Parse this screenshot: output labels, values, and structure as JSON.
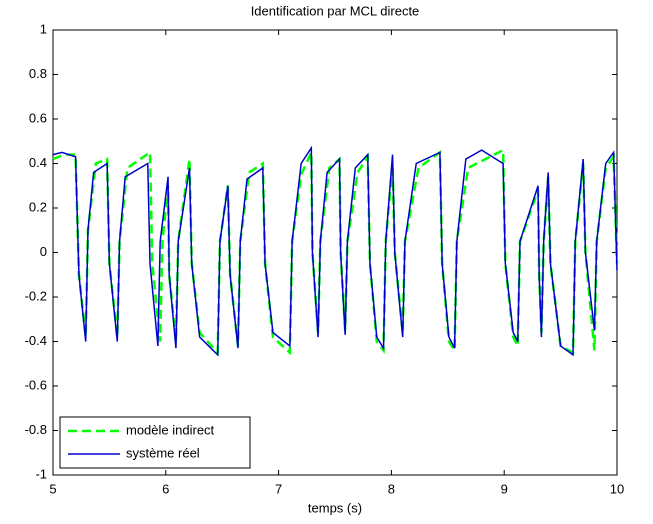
{
  "chart_data": {
    "type": "line",
    "title": "Identification par MCL directe",
    "x_label": "temps (s)",
    "xlim": [
      5,
      10
    ],
    "xticks": [
      5,
      6,
      7,
      8,
      9,
      10
    ],
    "ylim": [
      -1,
      1
    ],
    "yticks": [
      -1,
      -0.8,
      -0.6,
      -0.4,
      -0.2,
      0,
      0.2,
      0.4,
      0.6,
      0.8,
      1
    ],
    "legend": "lower left",
    "series": [
      {
        "name": "modèle indirect",
        "color": "#00ff00",
        "dash": true,
        "x": [
          5.0,
          5.1,
          5.2,
          5.23,
          5.29,
          5.31,
          5.38,
          5.48,
          5.5,
          5.57,
          5.59,
          5.66,
          5.86,
          5.88,
          5.95,
          5.97,
          6.02,
          6.03,
          6.09,
          6.11,
          6.21,
          6.23,
          6.3,
          6.46,
          6.48,
          6.55,
          6.57,
          6.64,
          6.66,
          6.74,
          6.86,
          6.88,
          6.95,
          7.1,
          7.12,
          7.2,
          7.29,
          7.3,
          7.35,
          7.37,
          7.45,
          7.54,
          7.55,
          7.59,
          7.61,
          7.7,
          7.79,
          7.81,
          7.87,
          7.93,
          7.95,
          8.01,
          8.03,
          8.1,
          8.12,
          8.24,
          8.43,
          8.45,
          8.51,
          8.56,
          8.58,
          8.68,
          8.99,
          9.01,
          9.08,
          9.12,
          9.14,
          9.3,
          9.31,
          9.33,
          9.35,
          9.39,
          9.41,
          9.5,
          9.61,
          9.63,
          9.7,
          9.72,
          9.8,
          9.82,
          9.9,
          9.97,
          10.0
        ],
        "values": [
          0.42,
          0.44,
          0.44,
          -0.1,
          -0.38,
          0.1,
          0.4,
          0.42,
          -0.05,
          -0.38,
          0.05,
          0.38,
          0.45,
          -0.05,
          -0.4,
          0.05,
          0.3,
          -0.1,
          -0.4,
          0.05,
          0.42,
          -0.05,
          -0.36,
          -0.45,
          0.05,
          0.3,
          -0.1,
          -0.42,
          0.05,
          0.36,
          0.4,
          -0.05,
          -0.38,
          -0.45,
          0.05,
          0.35,
          0.45,
          0.0,
          -0.36,
          0.05,
          0.38,
          0.42,
          0.0,
          -0.35,
          0.05,
          0.36,
          0.43,
          -0.05,
          -0.4,
          -0.44,
          0.05,
          0.4,
          0.0,
          -0.36,
          0.05,
          0.38,
          0.45,
          -0.05,
          -0.4,
          -0.44,
          0.05,
          0.38,
          0.46,
          -0.05,
          -0.38,
          -0.42,
          0.05,
          0.28,
          -0.1,
          -0.36,
          0.05,
          0.34,
          -0.05,
          -0.42,
          -0.45,
          0.05,
          0.4,
          0.0,
          -0.44,
          0.05,
          0.38,
          0.43,
          -0.05
        ]
      },
      {
        "name": "système réel",
        "color": "#0000cc",
        "dash": false,
        "x": [
          5.0,
          5.08,
          5.2,
          5.23,
          5.29,
          5.31,
          5.36,
          5.48,
          5.5,
          5.57,
          5.59,
          5.64,
          5.84,
          5.86,
          5.93,
          5.95,
          6.02,
          6.03,
          6.09,
          6.11,
          6.21,
          6.23,
          6.3,
          6.46,
          6.48,
          6.55,
          6.57,
          6.64,
          6.66,
          6.72,
          6.86,
          6.88,
          6.95,
          7.1,
          7.12,
          7.2,
          7.29,
          7.3,
          7.35,
          7.37,
          7.43,
          7.54,
          7.55,
          7.59,
          7.61,
          7.68,
          7.79,
          7.81,
          7.87,
          7.93,
          7.95,
          8.01,
          8.03,
          8.1,
          8.12,
          8.22,
          8.43,
          8.45,
          8.51,
          8.56,
          8.58,
          8.66,
          8.8,
          8.99,
          9.01,
          9.08,
          9.12,
          9.14,
          9.3,
          9.31,
          9.33,
          9.35,
          9.39,
          9.41,
          9.5,
          9.61,
          9.63,
          9.7,
          9.72,
          9.8,
          9.82,
          9.9,
          9.97,
          10.0
        ],
        "values": [
          0.44,
          0.45,
          0.43,
          -0.1,
          -0.4,
          0.1,
          0.36,
          0.4,
          -0.05,
          -0.4,
          0.05,
          0.34,
          0.4,
          -0.05,
          -0.42,
          0.05,
          0.34,
          -0.1,
          -0.43,
          0.05,
          0.38,
          -0.05,
          -0.38,
          -0.46,
          0.05,
          0.3,
          -0.1,
          -0.43,
          0.05,
          0.33,
          0.38,
          -0.05,
          -0.36,
          -0.42,
          0.05,
          0.4,
          0.47,
          0.0,
          -0.38,
          0.05,
          0.36,
          0.42,
          0.0,
          -0.37,
          0.05,
          0.38,
          0.44,
          -0.05,
          -0.38,
          -0.43,
          0.05,
          0.44,
          0.0,
          -0.38,
          0.05,
          0.4,
          0.45,
          -0.05,
          -0.38,
          -0.43,
          0.05,
          0.42,
          0.46,
          0.4,
          -0.05,
          -0.36,
          -0.4,
          0.05,
          0.3,
          -0.1,
          -0.38,
          0.05,
          0.36,
          -0.05,
          -0.42,
          -0.46,
          0.05,
          0.42,
          0.0,
          -0.35,
          0.05,
          0.4,
          0.45,
          -0.08
        ]
      }
    ]
  }
}
